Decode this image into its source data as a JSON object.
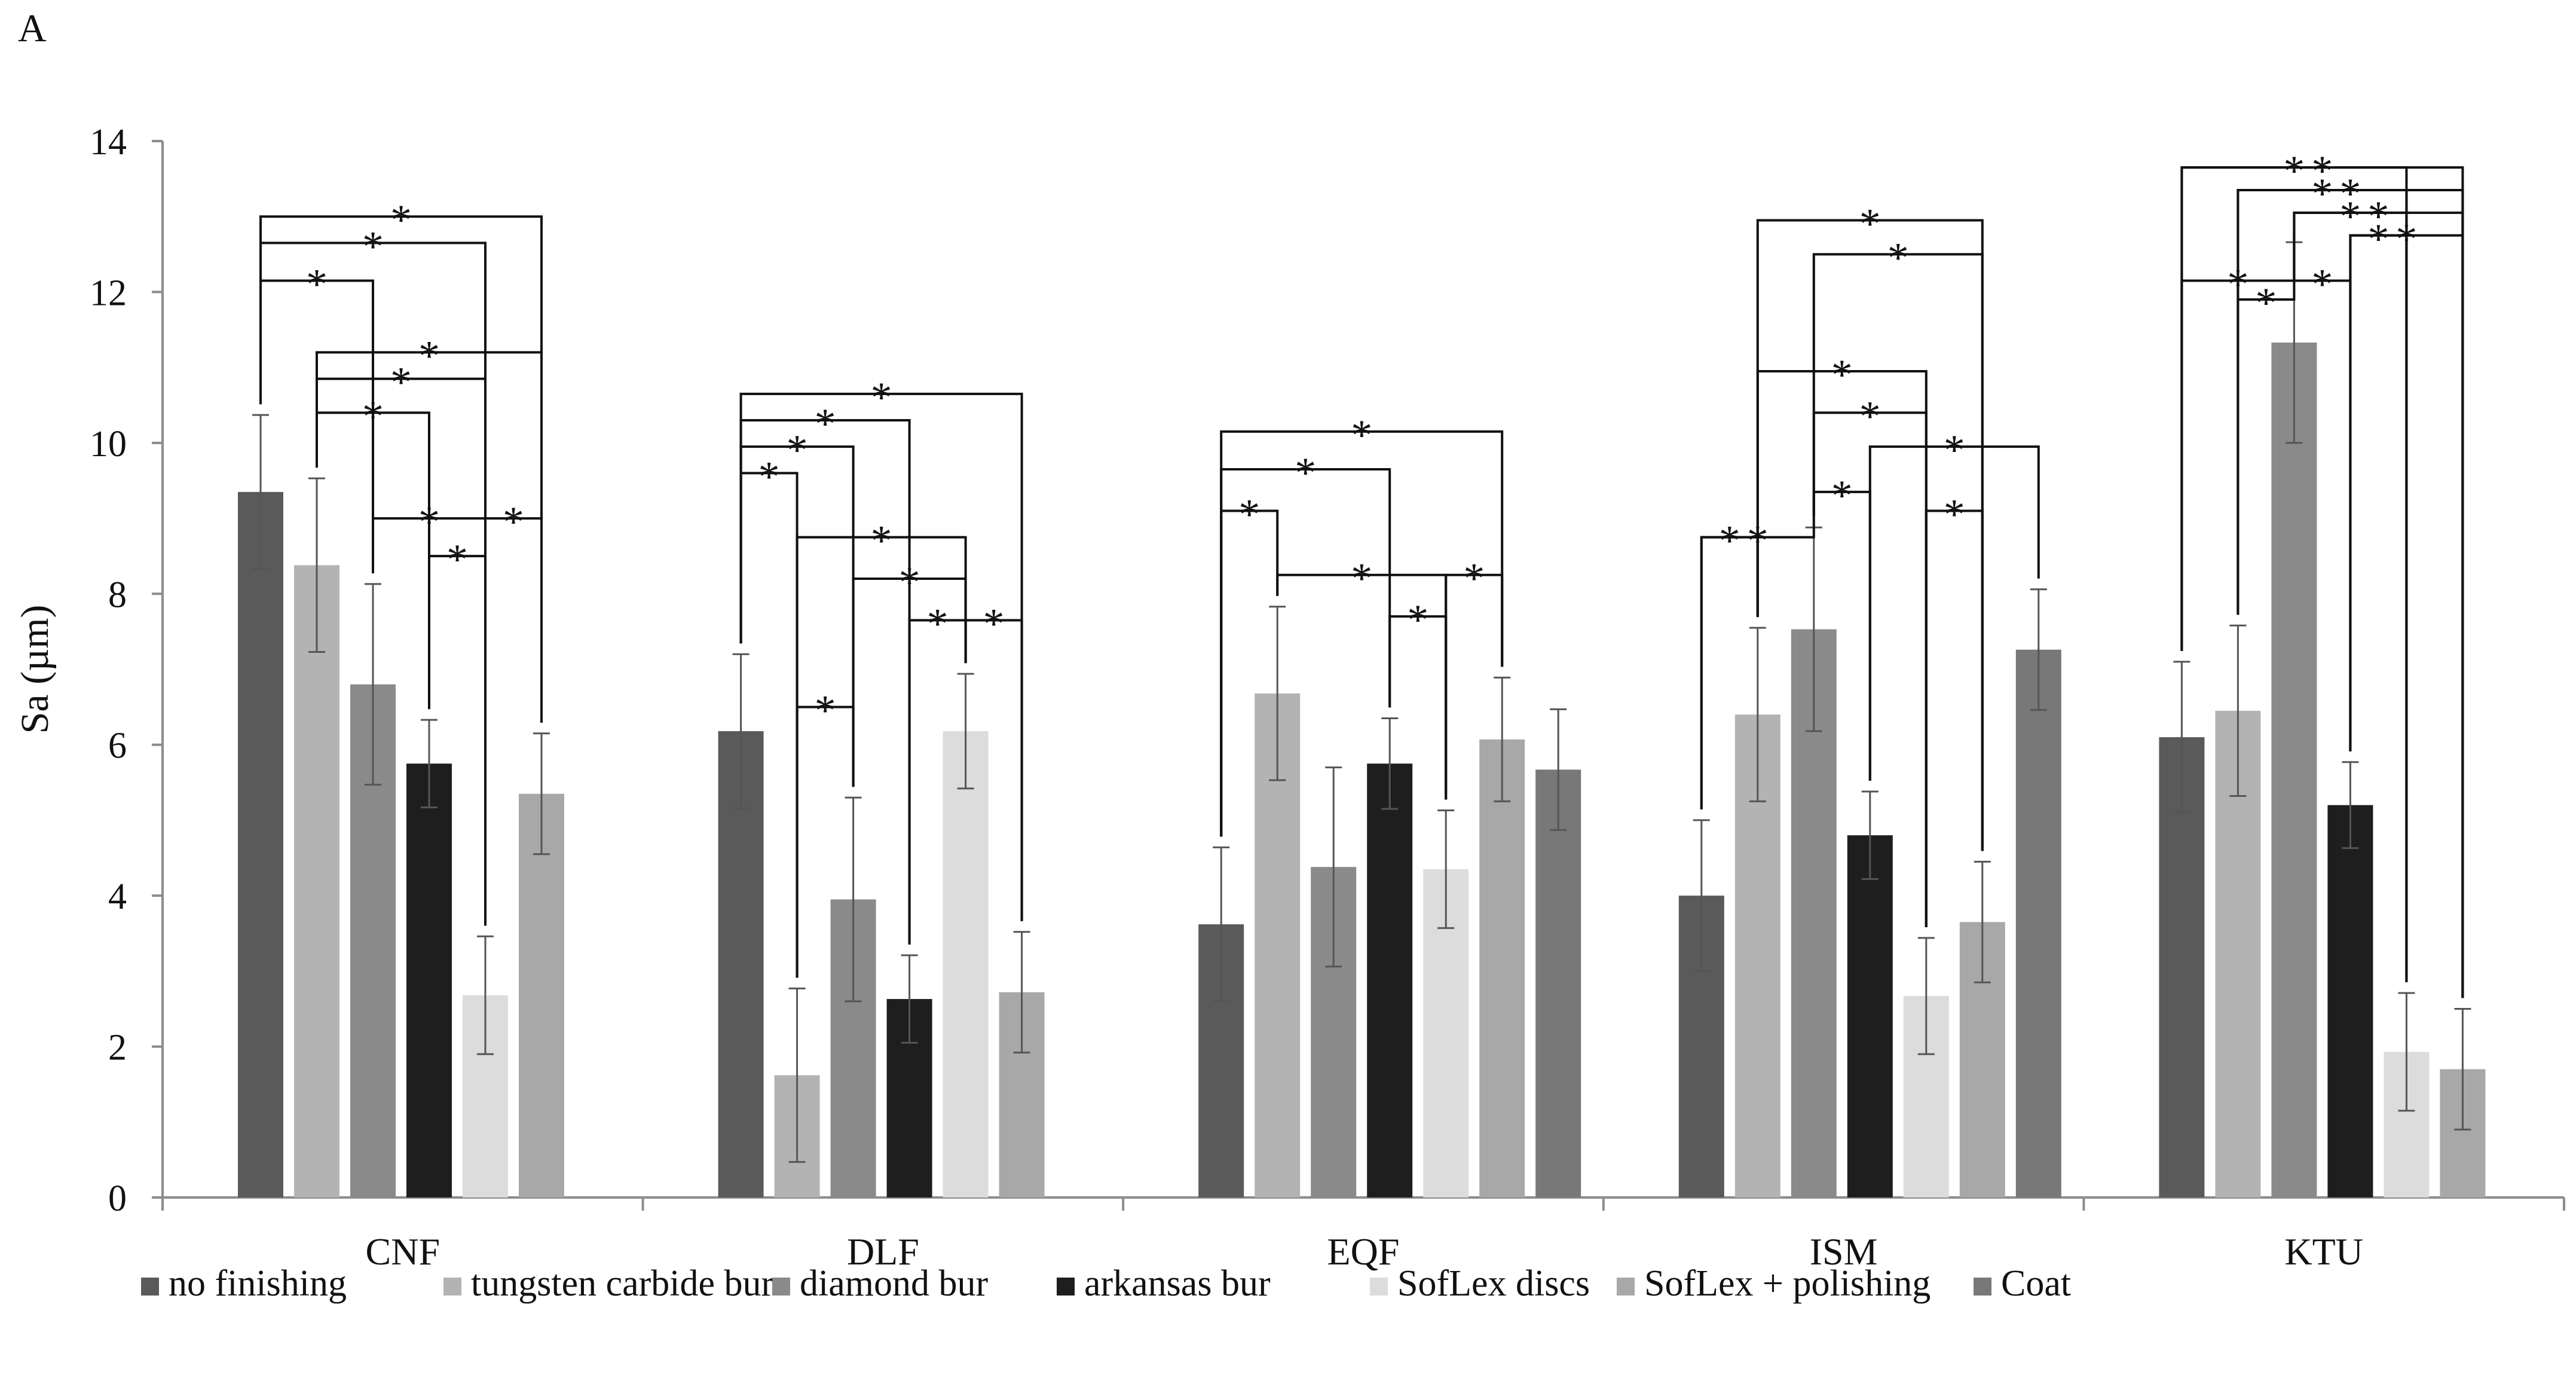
{
  "panel_label": "A",
  "chart_data": {
    "type": "bar",
    "title": "",
    "xlabel": "",
    "ylabel": "Sa (µm)",
    "ylim": [
      0,
      14
    ],
    "yticks": [
      0,
      2,
      4,
      6,
      8,
      10,
      12,
      14
    ],
    "grid": false,
    "legend_position": "bottom",
    "categories": [
      "CNF",
      "DLF",
      "EQF",
      "ISM",
      "KTU"
    ],
    "series": [
      {
        "name": "no finishing",
        "color": "#5a5a5a",
        "values": [
          9.35,
          6.18,
          3.62,
          4.0,
          6.1
        ],
        "errors": [
          1.02,
          1.02,
          1.02,
          1.0,
          1.0
        ]
      },
      {
        "name": "tungsten carbide bur",
        "color": "#b3b3b3",
        "values": [
          8.38,
          1.62,
          6.68,
          6.4,
          6.45
        ],
        "errors": [
          1.15,
          1.15,
          1.15,
          1.15,
          1.13
        ]
      },
      {
        "name": "diamond bur",
        "color": "#8a8a8a",
        "values": [
          6.8,
          3.95,
          4.38,
          7.53,
          11.33
        ],
        "errors": [
          1.33,
          1.35,
          1.32,
          1.35,
          1.33
        ]
      },
      {
        "name": "arkansas bur",
        "color": "#1e1e1e",
        "values": [
          5.75,
          2.63,
          5.75,
          4.8,
          5.2
        ],
        "errors": [
          0.58,
          0.58,
          0.6,
          0.58,
          0.57
        ]
      },
      {
        "name": "SofLex discs",
        "color": "#dcdcdc",
        "values": [
          2.68,
          6.18,
          4.35,
          2.67,
          1.93
        ],
        "errors": [
          0.78,
          0.76,
          0.78,
          0.77,
          0.78
        ]
      },
      {
        "name": "SofLex + polishing",
        "color": "#a8a8a8",
        "values": [
          5.35,
          2.72,
          6.07,
          3.65,
          1.7
        ],
        "errors": [
          0.8,
          0.8,
          0.82,
          0.8,
          0.8
        ]
      },
      {
        "name": "Coat",
        "color": "#787878",
        "values": [
          null,
          null,
          5.67,
          7.26,
          null
        ],
        "errors": [
          null,
          null,
          0.8,
          0.8,
          null
        ]
      }
    ],
    "significance_brackets": [
      {
        "group": "CNF",
        "from": 0,
        "to": 2,
        "y": 12.15,
        "label": "*"
      },
      {
        "group": "CNF",
        "from": 0,
        "to": 4,
        "y": 12.65,
        "label": "*"
      },
      {
        "group": "CNF",
        "from": 0,
        "to": 5,
        "y": 13.0,
        "label": "*"
      },
      {
        "group": "CNF",
        "from": 1,
        "to": 3,
        "y": 10.4,
        "label": "*"
      },
      {
        "group": "CNF",
        "from": 1,
        "to": 4,
        "y": 10.85,
        "label": "*"
      },
      {
        "group": "CNF",
        "from": 1,
        "to": 5,
        "y": 11.2,
        "label": "*"
      },
      {
        "group": "CNF",
        "from": 2,
        "to": 4,
        "y": 9.0,
        "label": "*"
      },
      {
        "group": "CNF",
        "from": 3,
        "to": 4,
        "y": 8.5,
        "label": "*"
      },
      {
        "group": "CNF",
        "from": 4,
        "to": 5,
        "y": 9.0,
        "label": "*"
      },
      {
        "group": "DLF",
        "from": 0,
        "to": 1,
        "y": 9.6,
        "label": "*"
      },
      {
        "group": "DLF",
        "from": 0,
        "to": 2,
        "y": 9.95,
        "label": "*"
      },
      {
        "group": "DLF",
        "from": 0,
        "to": 3,
        "y": 10.3,
        "label": "*"
      },
      {
        "group": "DLF",
        "from": 0,
        "to": 5,
        "y": 10.65,
        "label": "*"
      },
      {
        "group": "DLF",
        "from": 1,
        "to": 2,
        "y": 6.5,
        "label": "*"
      },
      {
        "group": "DLF",
        "from": 1,
        "to": 4,
        "y": 8.75,
        "label": "*"
      },
      {
        "group": "DLF",
        "from": 2,
        "to": 4,
        "y": 8.2,
        "label": "*"
      },
      {
        "group": "DLF",
        "from": 3,
        "to": 4,
        "y": 7.65,
        "label": "*"
      },
      {
        "group": "DLF",
        "from": 4,
        "to": 5,
        "y": 7.65,
        "label": "*"
      },
      {
        "group": "EQF",
        "from": 0,
        "to": 1,
        "y": 9.1,
        "label": "*"
      },
      {
        "group": "EQF",
        "from": 0,
        "to": 3,
        "y": 9.65,
        "label": "*"
      },
      {
        "group": "EQF",
        "from": 0,
        "to": 5,
        "y": 10.15,
        "label": "*"
      },
      {
        "group": "EQF",
        "from": 1,
        "to": 4,
        "y": 8.25,
        "label": "*"
      },
      {
        "group": "EQF",
        "from": 3,
        "to": 4,
        "y": 7.7,
        "label": "*"
      },
      {
        "group": "EQF",
        "from": 4,
        "to": 5,
        "y": 8.25,
        "label": "*"
      },
      {
        "group": "ISM",
        "from": 0,
        "to": 1,
        "y": 8.75,
        "label": "*"
      },
      {
        "group": "ISM",
        "from": 0,
        "to": 2,
        "y": 8.75,
        "label": "*"
      },
      {
        "group": "ISM",
        "from": 1,
        "to": 4,
        "y": 10.95,
        "label": "*"
      },
      {
        "group": "ISM",
        "from": 1,
        "to": 5,
        "y": 12.95,
        "label": "*"
      },
      {
        "group": "ISM",
        "from": 2,
        "to": 3,
        "y": 9.35,
        "label": "*"
      },
      {
        "group": "ISM",
        "from": 2,
        "to": 4,
        "y": 10.4,
        "label": "*"
      },
      {
        "group": "ISM",
        "from": 2,
        "to": 5,
        "y": 12.5,
        "label": "*"
      },
      {
        "group": "ISM",
        "from": 3,
        "to": 6,
        "y": 9.95,
        "label": "*"
      },
      {
        "group": "ISM",
        "from": 4,
        "to": 5,
        "y": 9.1,
        "label": "*"
      },
      {
        "group": "KTU",
        "from": 0,
        "to": 2,
        "y": 12.15,
        "label": "*"
      },
      {
        "group": "KTU",
        "from": 0,
        "to": 4,
        "y": 13.65,
        "label": "*"
      },
      {
        "group": "KTU",
        "from": 0,
        "to": 5,
        "y": 13.65,
        "label": "*"
      },
      {
        "group": "KTU",
        "from": 1,
        "to": 2,
        "y": 11.9,
        "label": "*"
      },
      {
        "group": "KTU",
        "from": 1,
        "to": 4,
        "y": 13.35,
        "label": "*"
      },
      {
        "group": "KTU",
        "from": 1,
        "to": 5,
        "y": 13.35,
        "label": "*"
      },
      {
        "group": "KTU",
        "from": 2,
        "to": 3,
        "y": 12.15,
        "label": "*"
      },
      {
        "group": "KTU",
        "from": 2,
        "to": 4,
        "y": 13.05,
        "label": "*"
      },
      {
        "group": "KTU",
        "from": 2,
        "to": 5,
        "y": 13.05,
        "label": "*"
      },
      {
        "group": "KTU",
        "from": 3,
        "to": 4,
        "y": 12.75,
        "label": "*"
      },
      {
        "group": "KTU",
        "from": 3,
        "to": 5,
        "y": 12.75,
        "label": "*"
      }
    ]
  }
}
